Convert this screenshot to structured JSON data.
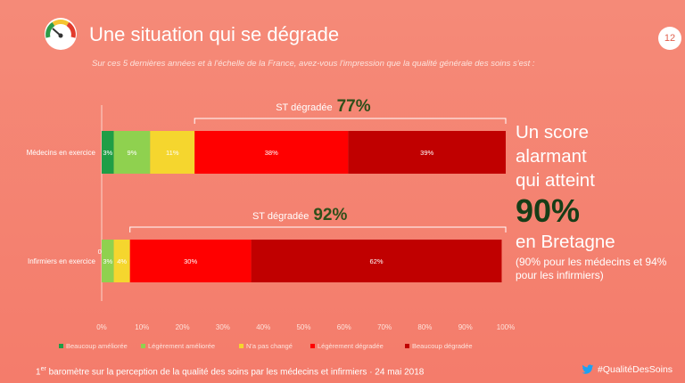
{
  "header": {
    "title": "Une situation qui se dégrade",
    "subtitle": "Sur ces 5 dernières années et à l'échelle de la France, avez-vous l'impression que la qualité générale des soins s'est :",
    "page_number": "12"
  },
  "chart_data": {
    "type": "bar",
    "orientation": "horizontal",
    "stacked": true,
    "categories": [
      "Médecins en exercice",
      "Infirmiers en exercice"
    ],
    "series": [
      {
        "name": "Beaucoup améliorée",
        "values": [
          3,
          0
        ],
        "labels": [
          "3%",
          "0%"
        ],
        "color": "#1f9e46"
      },
      {
        "name": "Légèrement améliorée",
        "values": [
          9,
          3
        ],
        "labels": [
          "9%",
          "3%"
        ],
        "color": "#8fd14f"
      },
      {
        "name": "N'a pas changé",
        "values": [
          11,
          4
        ],
        "labels": [
          "11%",
          "4%"
        ],
        "color": "#f5d62e"
      },
      {
        "name": "Légèrement dégradée",
        "values": [
          38,
          30
        ],
        "labels": [
          "38%",
          "30%"
        ],
        "color": "#ff0000"
      },
      {
        "name": "Beaucoup dégradée",
        "values": [
          39,
          62
        ],
        "labels": [
          "39%",
          "62%"
        ],
        "color": "#c00000"
      }
    ],
    "xlim": [
      0,
      100
    ],
    "xticks": [
      "0%",
      "10%",
      "20%",
      "30%",
      "40%",
      "50%",
      "60%",
      "70%",
      "80%",
      "90%",
      "100%"
    ],
    "annotations": [
      {
        "category": "Médecins en exercice",
        "label": "ST dégradée",
        "value": "77%",
        "from": 23,
        "to": 100
      },
      {
        "category": "Infirmiers en exercice",
        "label": "ST dégradée",
        "value": "92%",
        "from": 7,
        "to": 100
      }
    ],
    "legend_position": "bottom"
  },
  "side_panel": {
    "line1": "Un score",
    "line2": "alarmant",
    "line3": "qui atteint",
    "big_value": "90%",
    "line4": "en Bretagne",
    "detail": "(90% pour les médecins et 94% pour les infirmiers)"
  },
  "footer": {
    "ordinal": "1",
    "ordinal_suffix": "er",
    "text": " baromètre sur la perception de la qualité des soins par les médecins et infirmiers · 24 mai 2018",
    "hashtag": "#QualitéDesSoins"
  }
}
